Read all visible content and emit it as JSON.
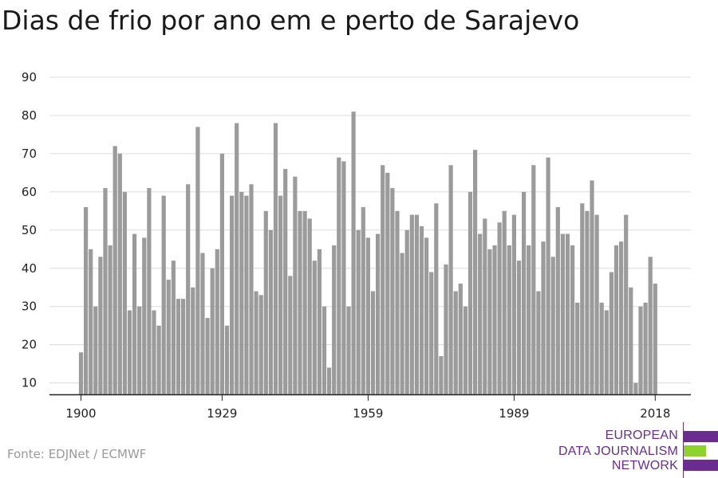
{
  "chart_data": {
    "type": "bar",
    "title": "Dias de frio por ano em e perto de Sarajevo",
    "xlabel": "",
    "ylabel": "",
    "x_ticks": [
      1900,
      1929,
      1959,
      1989,
      2018
    ],
    "y_ticks": [
      10,
      20,
      30,
      40,
      50,
      60,
      70,
      80,
      90
    ],
    "ylim": [
      7,
      90
    ],
    "grid": true,
    "bar_color": "#9b9b9b",
    "x": [
      1900,
      1901,
      1902,
      1903,
      1904,
      1905,
      1906,
      1907,
      1908,
      1909,
      1910,
      1911,
      1912,
      1913,
      1914,
      1915,
      1916,
      1917,
      1918,
      1919,
      1920,
      1921,
      1922,
      1923,
      1924,
      1925,
      1926,
      1927,
      1928,
      1929,
      1930,
      1931,
      1932,
      1933,
      1934,
      1935,
      1936,
      1937,
      1938,
      1939,
      1940,
      1941,
      1942,
      1943,
      1944,
      1945,
      1946,
      1947,
      1948,
      1949,
      1950,
      1951,
      1952,
      1953,
      1954,
      1955,
      1956,
      1957,
      1958,
      1959,
      1960,
      1961,
      1962,
      1963,
      1964,
      1965,
      1966,
      1967,
      1968,
      1969,
      1970,
      1971,
      1972,
      1973,
      1974,
      1975,
      1976,
      1977,
      1978,
      1979,
      1980,
      1981,
      1982,
      1983,
      1984,
      1985,
      1986,
      1987,
      1988,
      1989,
      1990,
      1991,
      1992,
      1993,
      1994,
      1995,
      1996,
      1997,
      1998,
      1999,
      2000,
      2001,
      2002,
      2003,
      2004,
      2005,
      2006,
      2007,
      2008,
      2009,
      2010,
      2011,
      2012,
      2013,
      2014,
      2015,
      2016,
      2017,
      2018
    ],
    "values": [
      18,
      56,
      45,
      30,
      43,
      61,
      46,
      72,
      70,
      60,
      29,
      49,
      30,
      48,
      61,
      29,
      25,
      59,
      37,
      42,
      32,
      32,
      62,
      35,
      77,
      44,
      27,
      40,
      45,
      70,
      25,
      59,
      78,
      60,
      59,
      62,
      34,
      33,
      55,
      50,
      78,
      59,
      66,
      38,
      64,
      55,
      55,
      53,
      42,
      45,
      30,
      14,
      46,
      69,
      68,
      30,
      81,
      50,
      56,
      48,
      34,
      49,
      67,
      65,
      61,
      55,
      44,
      50,
      54,
      54,
      51,
      48,
      39,
      57,
      17,
      41,
      67,
      34,
      36,
      30,
      60,
      71,
      49,
      53,
      45,
      46,
      52,
      55,
      46,
      54,
      42,
      60,
      46,
      67,
      34,
      47,
      69,
      43,
      56,
      49,
      49,
      46,
      31,
      57,
      55,
      63,
      54,
      31,
      29,
      39,
      46,
      47,
      54,
      35,
      10,
      30,
      31,
      43,
      36
    ]
  },
  "source": "Fonte: EDJNet / ECMWF",
  "logo": {
    "line1": "EUROPEAN",
    "line2": "DATA JOURNALISM",
    "line3": "NETWORK",
    "purple": "#6b2c8f",
    "green": "#8fd12f"
  }
}
